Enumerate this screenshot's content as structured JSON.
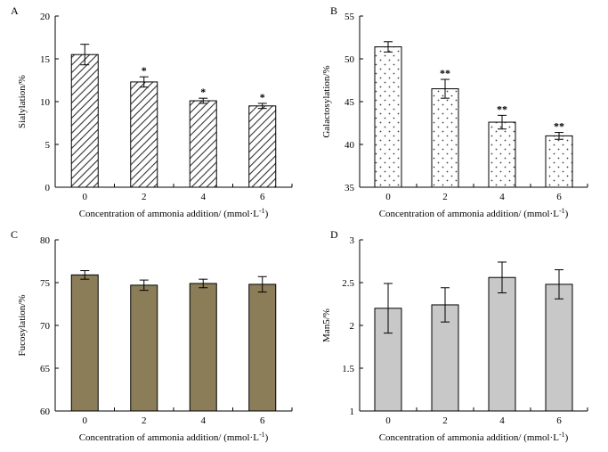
{
  "chart_data": [
    {
      "panel": "A",
      "type": "bar",
      "categories": [
        "0",
        "2",
        "4",
        "6"
      ],
      "values": [
        15.5,
        12.3,
        10.1,
        9.5
      ],
      "errors": [
        1.2,
        0.6,
        0.3,
        0.3
      ],
      "annotations": [
        "",
        "*",
        "*",
        "*"
      ],
      "ylabel": "Sialylation/%",
      "xlabel": "Concentration of ammonia addition/ (mmol·L",
      "xlabel_sup": "-1",
      "xlabel_tail": ")",
      "ylim": [
        0,
        20
      ],
      "yticks": [
        "0",
        "5",
        "10",
        "15",
        "20"
      ],
      "ytick_values": [
        0,
        5,
        10,
        15,
        20
      ],
      "fill": "hatch",
      "bar_color": "#ffffff"
    },
    {
      "panel": "B",
      "type": "bar",
      "categories": [
        "0",
        "2",
        "4",
        "6"
      ],
      "values": [
        51.4,
        46.5,
        42.6,
        41.0
      ],
      "errors": [
        0.6,
        1.1,
        0.8,
        0.4
      ],
      "annotations": [
        "",
        "**",
        "**",
        "**"
      ],
      "ylabel": "Galactosylation/%",
      "xlabel": "Concentration of ammonia addition/ (mmol·L",
      "xlabel_sup": "-1",
      "xlabel_tail": ")",
      "ylim": [
        35,
        55
      ],
      "yticks": [
        "35",
        "40",
        "45",
        "50",
        "55"
      ],
      "ytick_values": [
        35,
        40,
        45,
        50,
        55
      ],
      "fill": "dots",
      "bar_color": "#ffffff"
    },
    {
      "panel": "C",
      "type": "bar",
      "categories": [
        "0",
        "2",
        "4",
        "6"
      ],
      "values": [
        75.9,
        74.7,
        74.9,
        74.8
      ],
      "errors": [
        0.5,
        0.6,
        0.5,
        0.9
      ],
      "annotations": [
        "",
        "",
        "",
        ""
      ],
      "ylabel": "Fucosylation/%",
      "xlabel": "Concentration of ammonia addition/ (mmol·L",
      "xlabel_sup": "-1",
      "xlabel_tail": ")",
      "ylim": [
        60,
        80
      ],
      "yticks": [
        "60",
        "65",
        "70",
        "75",
        "80"
      ],
      "ytick_values": [
        60,
        65,
        70,
        75,
        80
      ],
      "fill": "solid",
      "bar_color": "#8b7d58"
    },
    {
      "panel": "D",
      "type": "bar",
      "categories": [
        "0",
        "2",
        "4",
        "6"
      ],
      "values": [
        2.2,
        2.24,
        2.56,
        2.48
      ],
      "errors": [
        0.29,
        0.2,
        0.18,
        0.17
      ],
      "annotations": [
        "",
        "",
        "",
        ""
      ],
      "ylabel": "Man5/%",
      "xlabel": "Concentration of ammonia addition/ (mmol·L",
      "xlabel_sup": "-1",
      "xlabel_tail": ")",
      "ylim": [
        1,
        3
      ],
      "yticks": [
        "1",
        "1.5",
        "2",
        "2.5",
        "3"
      ],
      "ytick_values": [
        1,
        1.5,
        2,
        2.5,
        3
      ],
      "fill": "solid",
      "bar_color": "#c8c8c8"
    }
  ]
}
